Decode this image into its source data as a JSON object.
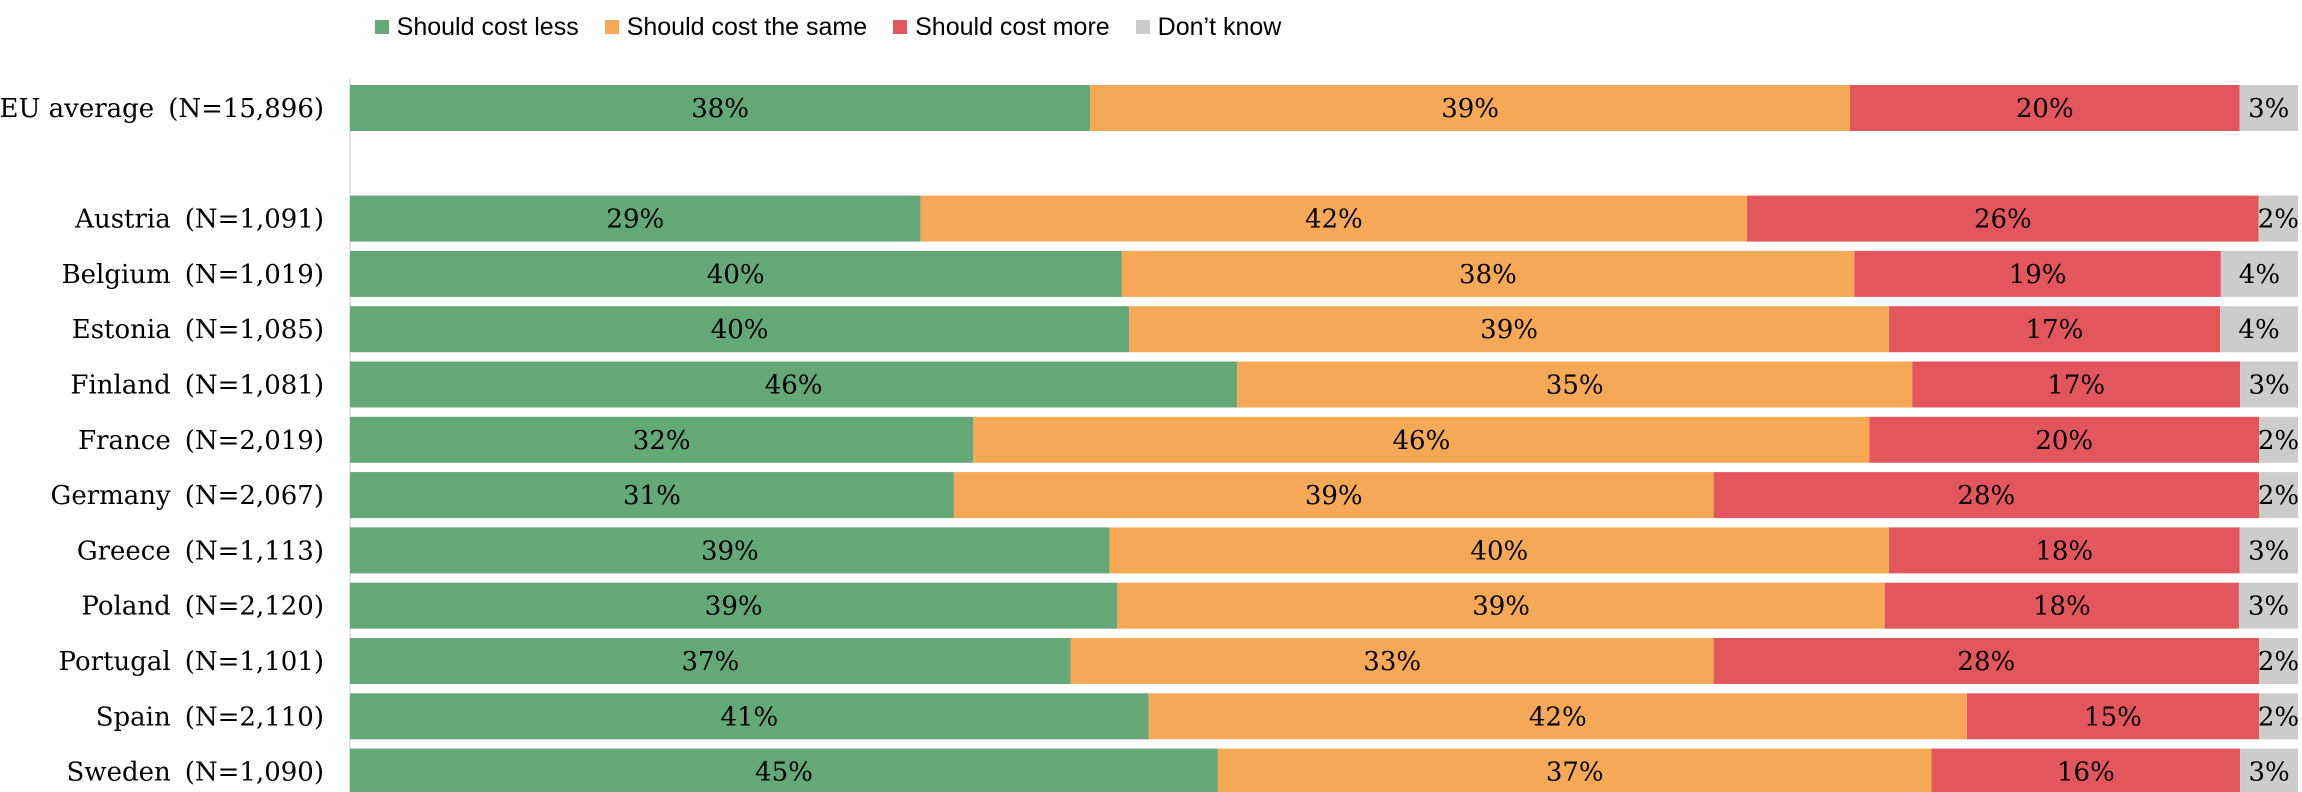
{
  "legend": {
    "items": [
      {
        "label": "Should cost less",
        "color": "#63a876"
      },
      {
        "label": "Should cost the same",
        "color": "#f5a956"
      },
      {
        "label": "Should cost more",
        "color": "#e3575c"
      },
      {
        "label": "Don’t know",
        "color": "#cccccc"
      }
    ]
  },
  "chart_data": {
    "type": "bar",
    "orientation": "horizontal",
    "stacked": true,
    "percent_stacked": true,
    "legend_position": "top",
    "categories": [
      "EU average (N=15,896)",
      "",
      "Austria (N=1,091)",
      "Belgium (N=1,019)",
      "Estonia (N=1,085)",
      "Finland (N=1,081)",
      "France (N=2,019)",
      "Germany (N=2,067)",
      "Greece (N=1,113)",
      "Poland (N=2,120)",
      "Portugal (N=1,101)",
      "Spain (N=2,110)",
      "Sweden (N=1,090)"
    ],
    "series": [
      {
        "name": "Should cost less",
        "color": "#63a876",
        "values": [
          38,
          null,
          29,
          40,
          40,
          46,
          32,
          31,
          39,
          39,
          37,
          41,
          45
        ]
      },
      {
        "name": "Should cost the same",
        "color": "#f5a956",
        "values": [
          39,
          null,
          42,
          38,
          39,
          35,
          46,
          39,
          40,
          39,
          33,
          42,
          37
        ]
      },
      {
        "name": "Should cost more",
        "color": "#e3575c",
        "values": [
          20,
          null,
          26,
          19,
          17,
          17,
          20,
          28,
          18,
          18,
          28,
          15,
          16
        ]
      },
      {
        "name": "Don’t know",
        "color": "#cccccc",
        "values": [
          3,
          null,
          2,
          4,
          4,
          3,
          2,
          2,
          3,
          3,
          2,
          2,
          3
        ]
      }
    ],
    "value_suffix": "%",
    "grid": false
  }
}
